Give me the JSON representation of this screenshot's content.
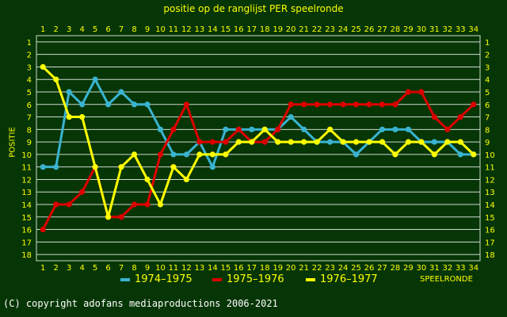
{
  "page": {
    "title": "positie op de ranglijst PER speelronde",
    "copyright": "(C) copyright adofans mediaproductions 2006-2021"
  },
  "colors": {
    "background": "#063606",
    "axis_text": "#ffff00",
    "grid": "#cfd9cf"
  },
  "chart_data": {
    "type": "line",
    "title": "positie op de ranglijst PER speelronde",
    "xlabel": "SPEELRONDE",
    "ylabel": "POSITIE",
    "x": [
      1,
      2,
      3,
      4,
      5,
      6,
      7,
      8,
      9,
      10,
      11,
      12,
      13,
      14,
      15,
      16,
      17,
      18,
      19,
      20,
      21,
      22,
      23,
      24,
      25,
      26,
      27,
      28,
      29,
      30,
      31,
      32,
      33,
      34
    ],
    "ylim": [
      1,
      18
    ],
    "y_inverted": true,
    "grid": true,
    "legend_position": "bottom",
    "series": [
      {
        "name": "1974–1975",
        "color": "#3ab3d0",
        "values": [
          11,
          11,
          5,
          6,
          4,
          6,
          5,
          6,
          6,
          8,
          10,
          10,
          9,
          11,
          8,
          8,
          8,
          8,
          8,
          7,
          8,
          9,
          9,
          9,
          10,
          9,
          8,
          8,
          8,
          9,
          9,
          9,
          10,
          10
        ]
      },
      {
        "name": "1975–1976",
        "color": "#dd0000",
        "values": [
          16,
          14,
          14,
          13,
          11,
          15,
          15,
          14,
          14,
          10,
          8,
          6,
          9,
          9,
          9,
          8,
          9,
          9,
          8,
          6,
          6,
          6,
          6,
          6,
          6,
          6,
          6,
          6,
          5,
          5,
          7,
          8,
          7,
          6
        ]
      },
      {
        "name": "1976–1977",
        "color": "#ffff00",
        "values": [
          3,
          4,
          7,
          7,
          11,
          15,
          11,
          10,
          12,
          14,
          11,
          12,
          10,
          10,
          10,
          9,
          9,
          8,
          9,
          9,
          9,
          9,
          8,
          9,
          9,
          9,
          9,
          10,
          9,
          9,
          10,
          9,
          9,
          10
        ]
      }
    ]
  }
}
